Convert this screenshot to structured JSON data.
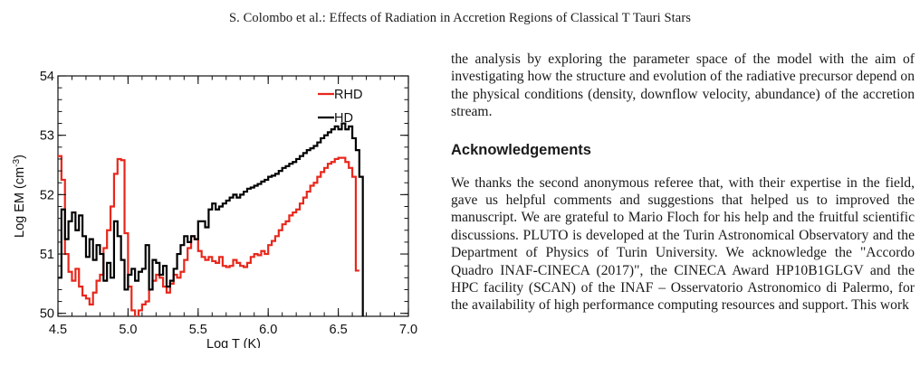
{
  "header": {
    "running_title": "S. Colombo  et al.:  Effects of Radiation in Accretion Regions of Classical T Tauri Stars"
  },
  "text": {
    "paragraph_1": "the analysis by exploring the parameter space of the model with the aim of investigating how the structure and evolution of the radiative precursor depend on the physical conditions (density, downflow velocity, abundance) of the accretion stream.",
    "ack_heading": "Acknowledgements",
    "ack_paragraph": "We thanks the second anonymous referee that, with their expertise in the field, gave us helpful comments and suggestions that helped us to improved the manuscript. We are grateful to Mario Floch for his help and the fruitful scientific discussions. PLUTO is developed at the Turin Astronomical Observatory and the Department of Physics of Turin University. We acknowledge the \"Accordo Quadro INAF-CINECA (2017)\", the CINECA Award HP10B1GLGV and the HPC facility (SCAN) of the INAF – Osservatorio Astronomico di Palermo, for the availability of high performance computing resources and support. This work"
  },
  "chart_data": {
    "type": "line",
    "step": true,
    "xlabel": "Log T (K)",
    "ylabel_main": "Log EM (cm",
    "ylabel_sup": "-3",
    "ylabel_end": ")",
    "xlim": [
      4.5,
      7.0
    ],
    "ylim": [
      49.95,
      54.0
    ],
    "x_ticks": [
      4.5,
      5.0,
      5.5,
      6.0,
      6.5,
      7.0
    ],
    "x_tick_labels": [
      "4.5",
      "5.0",
      "5.5",
      "6.0",
      "6.5",
      "7.0"
    ],
    "y_ticks": [
      50,
      51,
      52,
      53,
      54
    ],
    "y_tick_labels": [
      "50",
      "51",
      "52",
      "53",
      "54"
    ],
    "grid": false,
    "legend_position": "top-right",
    "series": [
      {
        "name": "RHD",
        "color": "#e8271b",
        "points": [
          [
            4.5,
            52.65
          ],
          [
            4.525,
            52.25
          ],
          [
            4.55,
            51.0
          ],
          [
            4.575,
            50.7
          ],
          [
            4.6,
            50.55
          ],
          [
            4.625,
            50.75
          ],
          [
            4.65,
            50.45
          ],
          [
            4.675,
            50.3
          ],
          [
            4.7,
            50.25
          ],
          [
            4.725,
            50.15
          ],
          [
            4.75,
            50.35
          ],
          [
            4.775,
            50.55
          ],
          [
            4.8,
            50.65
          ],
          [
            4.825,
            51.1
          ],
          [
            4.85,
            51.4
          ],
          [
            4.875,
            51.8
          ],
          [
            4.9,
            52.35
          ],
          [
            4.925,
            52.6
          ],
          [
            4.95,
            52.58
          ],
          [
            4.975,
            51.35
          ],
          [
            5.0,
            50.45
          ],
          [
            5.025,
            50.05
          ],
          [
            5.05,
            49.9
          ],
          [
            5.075,
            50.05
          ],
          [
            5.1,
            50.15
          ],
          [
            5.125,
            50.2
          ],
          [
            5.15,
            50.4
          ],
          [
            5.175,
            50.55
          ],
          [
            5.2,
            50.65
          ],
          [
            5.225,
            50.6
          ],
          [
            5.25,
            50.45
          ],
          [
            5.275,
            50.35
          ],
          [
            5.3,
            50.5
          ],
          [
            5.325,
            50.65
          ],
          [
            5.35,
            50.6
          ],
          [
            5.375,
            50.7
          ],
          [
            5.4,
            50.9
          ],
          [
            5.425,
            51.1
          ],
          [
            5.45,
            51.3
          ],
          [
            5.475,
            51.25
          ],
          [
            5.5,
            51.05
          ],
          [
            5.525,
            50.95
          ],
          [
            5.55,
            50.9
          ],
          [
            5.575,
            50.95
          ],
          [
            5.6,
            50.88
          ],
          [
            5.625,
            50.85
          ],
          [
            5.65,
            50.95
          ],
          [
            5.675,
            50.8
          ],
          [
            5.7,
            50.78
          ],
          [
            5.725,
            50.8
          ],
          [
            5.75,
            50.9
          ],
          [
            5.775,
            50.85
          ],
          [
            5.8,
            50.8
          ],
          [
            5.825,
            50.78
          ],
          [
            5.85,
            50.85
          ],
          [
            5.875,
            50.95
          ],
          [
            5.9,
            51.0
          ],
          [
            5.925,
            50.98
          ],
          [
            5.95,
            51.05
          ],
          [
            5.975,
            51.0
          ],
          [
            6.0,
            51.15
          ],
          [
            6.025,
            51.22
          ],
          [
            6.05,
            51.3
          ],
          [
            6.075,
            51.4
          ],
          [
            6.1,
            51.5
          ],
          [
            6.125,
            51.55
          ],
          [
            6.15,
            51.65
          ],
          [
            6.175,
            51.7
          ],
          [
            6.2,
            51.75
          ],
          [
            6.225,
            51.85
          ],
          [
            6.25,
            51.95
          ],
          [
            6.275,
            52.05
          ],
          [
            6.3,
            52.15
          ],
          [
            6.325,
            52.2
          ],
          [
            6.35,
            52.3
          ],
          [
            6.375,
            52.38
          ],
          [
            6.4,
            52.45
          ],
          [
            6.425,
            52.52
          ],
          [
            6.45,
            52.55
          ],
          [
            6.475,
            52.6
          ],
          [
            6.5,
            52.62
          ],
          [
            6.525,
            52.62
          ],
          [
            6.55,
            52.55
          ],
          [
            6.575,
            52.45
          ],
          [
            6.6,
            52.3
          ],
          [
            6.625,
            50.72
          ],
          [
            6.65,
            50.72
          ]
        ]
      },
      {
        "name": "HD",
        "color": "#000000",
        "points": [
          [
            4.5,
            50.6
          ],
          [
            4.525,
            51.75
          ],
          [
            4.55,
            51.25
          ],
          [
            4.575,
            51.55
          ],
          [
            4.6,
            51.7
          ],
          [
            4.625,
            51.4
          ],
          [
            4.65,
            51.65
          ],
          [
            4.675,
            51.3
          ],
          [
            4.7,
            50.95
          ],
          [
            4.725,
            51.25
          ],
          [
            4.75,
            50.9
          ],
          [
            4.775,
            51.15
          ],
          [
            4.8,
            51.0
          ],
          [
            4.825,
            50.55
          ],
          [
            4.85,
            50.85
          ],
          [
            4.875,
            50.6
          ],
          [
            4.9,
            51.55
          ],
          [
            4.925,
            51.3
          ],
          [
            4.95,
            50.9
          ],
          [
            4.975,
            50.4
          ],
          [
            5.0,
            50.65
          ],
          [
            5.025,
            50.75
          ],
          [
            5.05,
            50.55
          ],
          [
            5.075,
            50.7
          ],
          [
            5.1,
            50.75
          ],
          [
            5.125,
            51.15
          ],
          [
            5.15,
            50.4
          ],
          [
            5.175,
            50.9
          ],
          [
            5.2,
            50.85
          ],
          [
            5.225,
            50.65
          ],
          [
            5.25,
            50.8
          ],
          [
            5.275,
            50.45
          ],
          [
            5.3,
            50.55
          ],
          [
            5.325,
            50.75
          ],
          [
            5.35,
            51.0
          ],
          [
            5.375,
            51.15
          ],
          [
            5.4,
            51.3
          ],
          [
            5.425,
            51.2
          ],
          [
            5.45,
            51.3
          ],
          [
            5.475,
            51.25
          ],
          [
            5.5,
            51.55
          ],
          [
            5.525,
            51.55
          ],
          [
            5.55,
            51.45
          ],
          [
            5.575,
            51.75
          ],
          [
            5.6,
            51.85
          ],
          [
            5.625,
            51.75
          ],
          [
            5.65,
            51.8
          ],
          [
            5.675,
            51.85
          ],
          [
            5.7,
            51.9
          ],
          [
            5.725,
            51.95
          ],
          [
            5.75,
            52.0
          ],
          [
            5.775,
            51.95
          ],
          [
            5.8,
            52.0
          ],
          [
            5.825,
            52.05
          ],
          [
            5.85,
            52.1
          ],
          [
            5.875,
            52.12
          ],
          [
            5.9,
            52.15
          ],
          [
            5.925,
            52.18
          ],
          [
            5.95,
            52.22
          ],
          [
            5.975,
            52.25
          ],
          [
            6.0,
            52.3
          ],
          [
            6.025,
            52.32
          ],
          [
            6.05,
            52.35
          ],
          [
            6.075,
            52.4
          ],
          [
            6.1,
            52.45
          ],
          [
            6.125,
            52.48
          ],
          [
            6.15,
            52.52
          ],
          [
            6.175,
            52.55
          ],
          [
            6.2,
            52.6
          ],
          [
            6.225,
            52.65
          ],
          [
            6.25,
            52.7
          ],
          [
            6.275,
            52.75
          ],
          [
            6.3,
            52.78
          ],
          [
            6.325,
            52.82
          ],
          [
            6.35,
            52.88
          ],
          [
            6.375,
            52.95
          ],
          [
            6.4,
            53.0
          ],
          [
            6.425,
            53.05
          ],
          [
            6.45,
            53.1
          ],
          [
            6.475,
            53.15
          ],
          [
            6.5,
            53.1
          ],
          [
            6.525,
            53.2
          ],
          [
            6.55,
            53.1
          ],
          [
            6.575,
            53.15
          ],
          [
            6.6,
            52.95
          ],
          [
            6.625,
            52.75
          ],
          [
            6.65,
            52.3
          ],
          [
            6.675,
            49.9
          ]
        ]
      }
    ]
  }
}
